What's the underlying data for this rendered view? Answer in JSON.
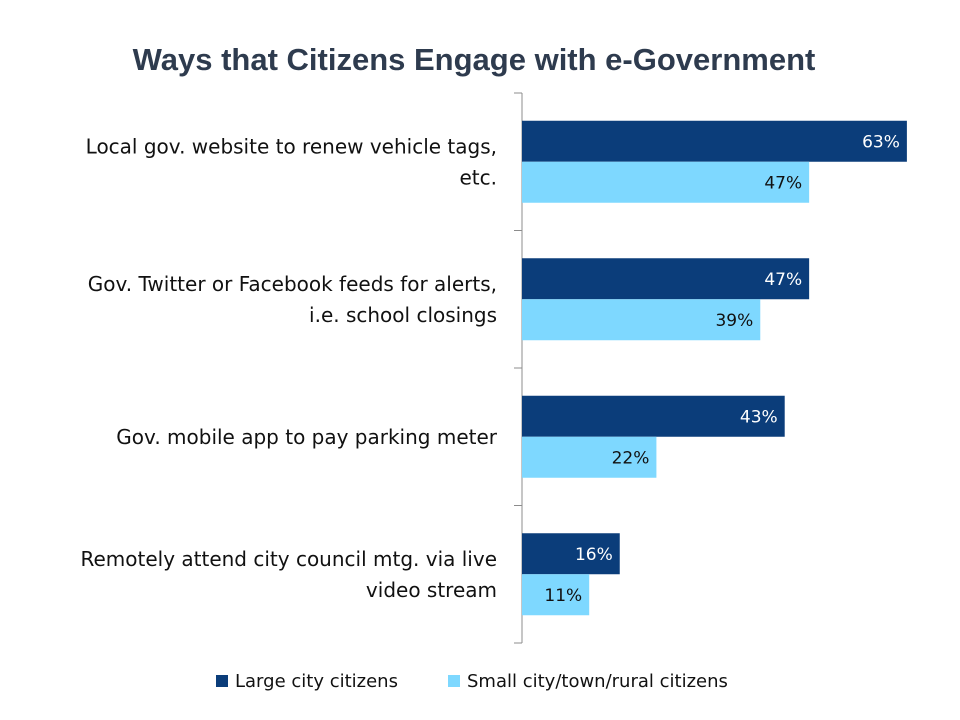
{
  "chart_data": {
    "type": "bar",
    "orientation": "horizontal",
    "title": "Ways that Citizens Engage with e-Government",
    "categories": [
      [
        "Local gov. website to renew vehicle tags,",
        "etc."
      ],
      [
        "Gov. Twitter or Facebook feeds for alerts,",
        "i.e. school closings"
      ],
      [
        "Gov. mobile app to pay parking meter"
      ],
      [
        "Remotely attend city council mtg. via live",
        "video stream"
      ]
    ],
    "series": [
      {
        "name": "Large city citizens",
        "color": "#0b3d7a",
        "label_color": "#ffffff",
        "values": [
          63,
          47,
          43,
          16
        ],
        "labels": [
          "63%",
          "47%",
          "43%",
          "16%"
        ]
      },
      {
        "name": "Small city/town/rural citizens",
        "color": "#7ed8ff",
        "label_color": "#111111",
        "values": [
          47,
          39,
          22,
          11
        ],
        "labels": [
          "47%",
          "39%",
          "22%",
          "11%"
        ]
      }
    ],
    "xlim": [
      0,
      64
    ],
    "grid": false,
    "legend_position": "bottom"
  }
}
